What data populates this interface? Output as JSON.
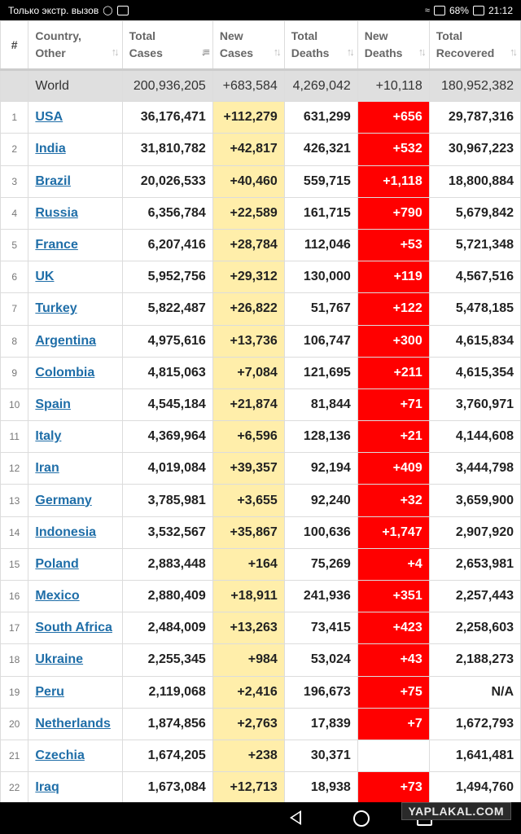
{
  "statusbar": {
    "carrier_text": "Только экстр. вызов",
    "battery": "68%",
    "time": "21:12"
  },
  "table": {
    "headers": [
      {
        "label": "#"
      },
      {
        "label": "Country, Other"
      },
      {
        "label": "Total Cases"
      },
      {
        "label": "New Cases"
      },
      {
        "label": "Total Deaths"
      },
      {
        "label": "New Deaths"
      },
      {
        "label": "Total Recovered"
      }
    ],
    "world": {
      "country": "World",
      "total_cases": "200,936,205",
      "new_cases": "+683,584",
      "total_deaths": "4,269,042",
      "new_deaths": "+10,118",
      "total_recovered": "180,952,382"
    },
    "rows": [
      {
        "num": "1",
        "country": "USA",
        "total_cases": "36,176,471",
        "new_cases": "+112,279",
        "total_deaths": "631,299",
        "new_deaths": "+656",
        "total_recovered": "29,787,316"
      },
      {
        "num": "2",
        "country": "India",
        "total_cases": "31,810,782",
        "new_cases": "+42,817",
        "total_deaths": "426,321",
        "new_deaths": "+532",
        "total_recovered": "30,967,223"
      },
      {
        "num": "3",
        "country": "Brazil",
        "total_cases": "20,026,533",
        "new_cases": "+40,460",
        "total_deaths": "559,715",
        "new_deaths": "+1,118",
        "total_recovered": "18,800,884"
      },
      {
        "num": "4",
        "country": "Russia",
        "total_cases": "6,356,784",
        "new_cases": "+22,589",
        "total_deaths": "161,715",
        "new_deaths": "+790",
        "total_recovered": "5,679,842"
      },
      {
        "num": "5",
        "country": "France",
        "total_cases": "6,207,416",
        "new_cases": "+28,784",
        "total_deaths": "112,046",
        "new_deaths": "+53",
        "total_recovered": "5,721,348"
      },
      {
        "num": "6",
        "country": "UK",
        "total_cases": "5,952,756",
        "new_cases": "+29,312",
        "total_deaths": "130,000",
        "new_deaths": "+119",
        "total_recovered": "4,567,516"
      },
      {
        "num": "7",
        "country": "Turkey",
        "total_cases": "5,822,487",
        "new_cases": "+26,822",
        "total_deaths": "51,767",
        "new_deaths": "+122",
        "total_recovered": "5,478,185"
      },
      {
        "num": "8",
        "country": "Argentina",
        "total_cases": "4,975,616",
        "new_cases": "+13,736",
        "total_deaths": "106,747",
        "new_deaths": "+300",
        "total_recovered": "4,615,834"
      },
      {
        "num": "9",
        "country": "Colombia",
        "total_cases": "4,815,063",
        "new_cases": "+7,084",
        "total_deaths": "121,695",
        "new_deaths": "+211",
        "total_recovered": "4,615,354"
      },
      {
        "num": "10",
        "country": "Spain",
        "total_cases": "4,545,184",
        "new_cases": "+21,874",
        "total_deaths": "81,844",
        "new_deaths": "+71",
        "total_recovered": "3,760,971"
      },
      {
        "num": "11",
        "country": "Italy",
        "total_cases": "4,369,964",
        "new_cases": "+6,596",
        "total_deaths": "128,136",
        "new_deaths": "+21",
        "total_recovered": "4,144,608"
      },
      {
        "num": "12",
        "country": "Iran",
        "total_cases": "4,019,084",
        "new_cases": "+39,357",
        "total_deaths": "92,194",
        "new_deaths": "+409",
        "total_recovered": "3,444,798"
      },
      {
        "num": "13",
        "country": "Germany",
        "total_cases": "3,785,981",
        "new_cases": "+3,655",
        "total_deaths": "92,240",
        "new_deaths": "+32",
        "total_recovered": "3,659,900"
      },
      {
        "num": "14",
        "country": "Indonesia",
        "total_cases": "3,532,567",
        "new_cases": "+35,867",
        "total_deaths": "100,636",
        "new_deaths": "+1,747",
        "total_recovered": "2,907,920"
      },
      {
        "num": "15",
        "country": "Poland",
        "total_cases": "2,883,448",
        "new_cases": "+164",
        "total_deaths": "75,269",
        "new_deaths": "+4",
        "total_recovered": "2,653,981"
      },
      {
        "num": "16",
        "country": "Mexico",
        "total_cases": "2,880,409",
        "new_cases": "+18,911",
        "total_deaths": "241,936",
        "new_deaths": "+351",
        "total_recovered": "2,257,443"
      },
      {
        "num": "17",
        "country": "South Africa",
        "total_cases": "2,484,009",
        "new_cases": "+13,263",
        "total_deaths": "73,415",
        "new_deaths": "+423",
        "total_recovered": "2,258,603"
      },
      {
        "num": "18",
        "country": "Ukraine",
        "total_cases": "2,255,345",
        "new_cases": "+984",
        "total_deaths": "53,024",
        "new_deaths": "+43",
        "total_recovered": "2,188,273"
      },
      {
        "num": "19",
        "country": "Peru",
        "total_cases": "2,119,068",
        "new_cases": "+2,416",
        "total_deaths": "196,673",
        "new_deaths": "+75",
        "total_recovered": "N/A"
      },
      {
        "num": "20",
        "country": "Netherlands",
        "total_cases": "1,874,856",
        "new_cases": "+2,763",
        "total_deaths": "17,839",
        "new_deaths": "+7",
        "total_recovered": "1,672,793"
      },
      {
        "num": "21",
        "country": "Czechia",
        "total_cases": "1,674,205",
        "new_cases": "+238",
        "total_deaths": "30,371",
        "new_deaths": "",
        "total_recovered": "1,641,481"
      },
      {
        "num": "22",
        "country": "Iraq",
        "total_cases": "1,673,084",
        "new_cases": "+12,713",
        "total_deaths": "18,938",
        "new_deaths": "+73",
        "total_recovered": "1,494,760"
      }
    ]
  },
  "colors": {
    "link": "#1f6ea8",
    "new_cases_bg": "#ffeeaa",
    "new_deaths_bg": "#ff0000",
    "world_row_bg": "#dfdfdf"
  },
  "watermark": "YAPLAKAL.COM"
}
